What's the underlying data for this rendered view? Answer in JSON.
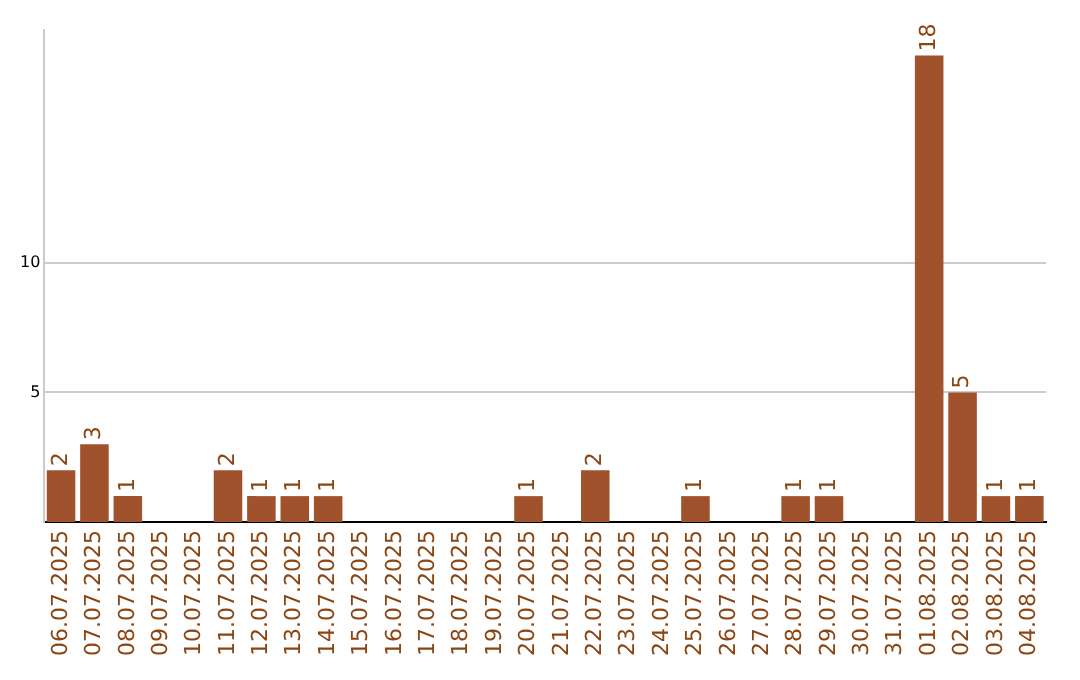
{
  "chart_data": {
    "type": "bar",
    "categories": [
      "06.07.2025",
      "07.07.2025",
      "08.07.2025",
      "09.07.2025",
      "10.07.2025",
      "11.07.2025",
      "12.07.2025",
      "13.07.2025",
      "14.07.2025",
      "15.07.2025",
      "16.07.2025",
      "17.07.2025",
      "18.07.2025",
      "19.07.2025",
      "20.07.2025",
      "21.07.2025",
      "22.07.2025",
      "23.07.2025",
      "24.07.2025",
      "25.07.2025",
      "26.07.2025",
      "27.07.2025",
      "28.07.2025",
      "29.07.2025",
      "30.07.2025",
      "31.07.2025",
      "01.08.2025",
      "02.08.2025",
      "03.08.2025",
      "04.08.2025"
    ],
    "values": [
      2,
      3,
      1,
      0,
      0,
      2,
      1,
      1,
      1,
      0,
      0,
      0,
      0,
      0,
      1,
      0,
      2,
      0,
      0,
      1,
      0,
      0,
      1,
      1,
      0,
      0,
      18,
      5,
      1,
      1
    ],
    "value_labels": [
      "2",
      "3",
      "1",
      null,
      null,
      "2",
      "1",
      "1",
      "1",
      null,
      null,
      null,
      null,
      null,
      "1",
      null,
      "2",
      null,
      null,
      "1",
      null,
      null,
      "1",
      "1",
      null,
      null,
      "18",
      "5",
      "1",
      "1"
    ],
    "color": "#a0522d",
    "ylim": [
      0,
      19
    ],
    "yticks": [
      5,
      10
    ],
    "grid": "y"
  }
}
